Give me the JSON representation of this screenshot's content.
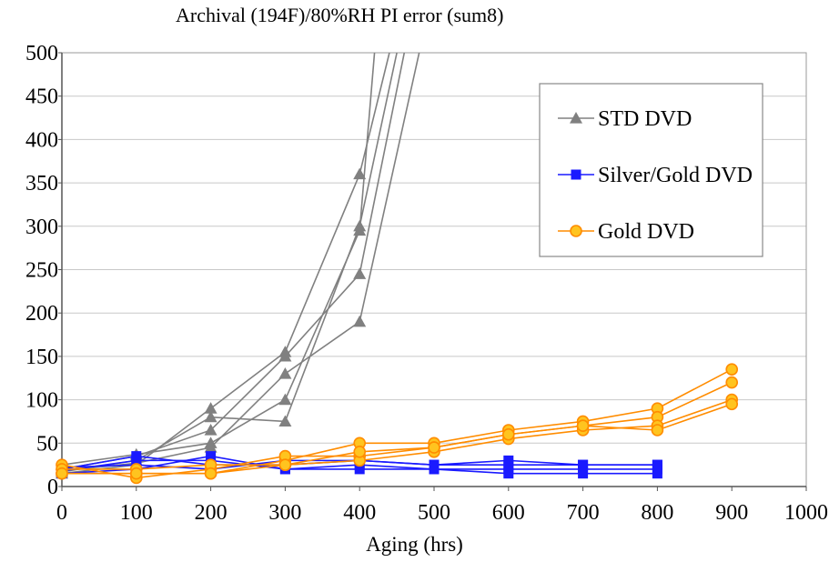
{
  "chart_data": {
    "type": "line",
    "title": "Archival  (194F)/80%RH  PI error (sum8)",
    "xlabel": "Aging (hrs)",
    "ylabel": "",
    "xlim": [
      0,
      1000
    ],
    "ylim": [
      0,
      500
    ],
    "x_ticks": [
      "0",
      "100",
      "200",
      "300",
      "400",
      "500",
      "600",
      "700",
      "800",
      "900",
      "1000"
    ],
    "y_ticks": [
      "0",
      "50",
      "100",
      "150",
      "200",
      "250",
      "300",
      "350",
      "400",
      "450",
      "500"
    ],
    "grid": "horizontal",
    "legend_position": "top-right",
    "series": [
      {
        "name": "STD DVD",
        "group": "std",
        "color": "#808080",
        "marker": "triangle",
        "points": [
          [
            0,
            15
          ],
          [
            100,
            25
          ],
          [
            200,
            90
          ],
          [
            300,
            155
          ],
          [
            400,
            360
          ],
          [
            440,
            500
          ]
        ]
      },
      {
        "group": "std",
        "color": "#808080",
        "marker": "triangle",
        "points": [
          [
            0,
            17
          ],
          [
            100,
            30
          ],
          [
            200,
            80
          ],
          [
            300,
            75
          ],
          [
            400,
            300
          ],
          [
            450,
            500
          ]
        ]
      },
      {
        "group": "std",
        "color": "#808080",
        "marker": "triangle",
        "points": [
          [
            0,
            20
          ],
          [
            100,
            35
          ],
          [
            200,
            65
          ],
          [
            300,
            150
          ],
          [
            400,
            245
          ],
          [
            460,
            500
          ]
        ]
      },
      {
        "group": "std",
        "color": "#808080",
        "marker": "triangle",
        "points": [
          [
            0,
            25
          ],
          [
            100,
            37
          ],
          [
            200,
            50
          ],
          [
            300,
            100
          ],
          [
            400,
            295
          ],
          [
            420,
            500
          ]
        ]
      },
      {
        "group": "std",
        "color": "#808080",
        "marker": "triangle",
        "points": [
          [
            0,
            18
          ],
          [
            100,
            27
          ],
          [
            200,
            45
          ],
          [
            300,
            130
          ],
          [
            400,
            190
          ],
          [
            480,
            500
          ]
        ]
      },
      {
        "name": "Silver/Gold DVD",
        "group": "silver",
        "color": "#1a1aff",
        "marker": "square",
        "points": [
          [
            0,
            15
          ],
          [
            100,
            20
          ],
          [
            200,
            35
          ],
          [
            300,
            20
          ],
          [
            400,
            20
          ],
          [
            500,
            20
          ],
          [
            600,
            20
          ],
          [
            700,
            20
          ],
          [
            800,
            20
          ]
        ]
      },
      {
        "group": "silver",
        "color": "#1a1aff",
        "marker": "square",
        "points": [
          [
            0,
            20
          ],
          [
            100,
            35
          ],
          [
            200,
            25
          ],
          [
            300,
            25
          ],
          [
            400,
            30
          ],
          [
            500,
            25
          ],
          [
            600,
            30
          ],
          [
            700,
            25
          ],
          [
            800,
            25
          ]
        ]
      },
      {
        "group": "silver",
        "color": "#1a1aff",
        "marker": "square",
        "points": [
          [
            0,
            18
          ],
          [
            100,
            30
          ],
          [
            200,
            30
          ],
          [
            300,
            20
          ],
          [
            400,
            25
          ],
          [
            500,
            20
          ],
          [
            600,
            15
          ],
          [
            700,
            15
          ],
          [
            800,
            15
          ]
        ]
      },
      {
        "group": "silver",
        "color": "#1a1aff",
        "marker": "square",
        "points": [
          [
            0,
            22
          ],
          [
            100,
            25
          ],
          [
            200,
            20
          ],
          [
            300,
            30
          ],
          [
            400,
            30
          ],
          [
            500,
            25
          ],
          [
            600,
            25
          ],
          [
            700,
            25
          ],
          [
            800,
            25
          ]
        ]
      },
      {
        "name": "Gold DVD",
        "group": "gold",
        "color": "#ff8c00",
        "marker": "circle",
        "points": [
          [
            0,
            15
          ],
          [
            100,
            15
          ],
          [
            200,
            15
          ],
          [
            300,
            30
          ],
          [
            400,
            50
          ],
          [
            500,
            50
          ],
          [
            600,
            65
          ],
          [
            700,
            75
          ],
          [
            800,
            90
          ],
          [
            900,
            135
          ]
        ]
      },
      {
        "group": "gold",
        "color": "#ff8c00",
        "marker": "circle",
        "points": [
          [
            0,
            25
          ],
          [
            100,
            10
          ],
          [
            200,
            20
          ],
          [
            300,
            35
          ],
          [
            400,
            35
          ],
          [
            500,
            45
          ],
          [
            600,
            60
          ],
          [
            700,
            70
          ],
          [
            800,
            80
          ],
          [
            900,
            120
          ]
        ]
      },
      {
        "group": "gold",
        "color": "#ff8c00",
        "marker": "circle",
        "points": [
          [
            0,
            20
          ],
          [
            100,
            20
          ],
          [
            200,
            25
          ],
          [
            300,
            25
          ],
          [
            400,
            30
          ],
          [
            500,
            40
          ],
          [
            600,
            55
          ],
          [
            700,
            65
          ],
          [
            800,
            70
          ],
          [
            900,
            100
          ]
        ]
      },
      {
        "group": "gold",
        "color": "#ff8c00",
        "marker": "circle",
        "points": [
          [
            0,
            15
          ],
          [
            100,
            15
          ],
          [
            200,
            15
          ],
          [
            300,
            25
          ],
          [
            400,
            40
          ],
          [
            500,
            45
          ],
          [
            600,
            60
          ],
          [
            700,
            70
          ],
          [
            800,
            65
          ],
          [
            900,
            95
          ]
        ]
      }
    ]
  }
}
